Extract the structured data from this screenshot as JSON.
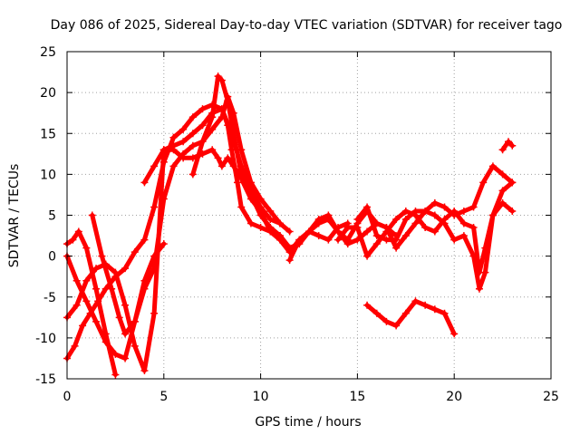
{
  "chart_data": {
    "type": "line",
    "title": "Day 086 of 2025, Sidereal Day-to-day VTEC variation (SDTVAR) for receiver tago",
    "xlabel": "GPS time / hours",
    "ylabel": "SDTVAR / TECUs",
    "xlim": [
      0,
      25
    ],
    "ylim": [
      -15,
      25
    ],
    "xticks": [
      0,
      5,
      10,
      15,
      20,
      25
    ],
    "yticks": [
      -15,
      -10,
      -5,
      0,
      5,
      10,
      15,
      20,
      25
    ],
    "grid": true,
    "marker": "plus",
    "color": "#ff0000",
    "series": [
      {
        "name": "track-1",
        "x": [
          0,
          0.5,
          1.0,
          1.5,
          2.0,
          2.5,
          3.0,
          3.5,
          4.0,
          4.5,
          5.0
        ],
        "y": [
          0,
          -3,
          -5.5,
          -8,
          -10.5,
          -12,
          -12.5,
          -8,
          -3,
          0,
          1.5
        ]
      },
      {
        "name": "track-2",
        "x": [
          0,
          0.4,
          0.8,
          1.2,
          1.6,
          2.0,
          2.5,
          3.0,
          3.5,
          4.0,
          4.5,
          5.0,
          5.5,
          6.0,
          6.5,
          7.0,
          7.5,
          8.0,
          8.3,
          8.5,
          8.8,
          9.0,
          9.5,
          10.0,
          10.5,
          11.0
        ],
        "y": [
          -12.5,
          -11,
          -8.5,
          -7,
          -5.5,
          -4,
          -2.5,
          -1.5,
          0.5,
          2,
          6,
          11.5,
          14.5,
          15.5,
          17,
          18,
          18.5,
          18,
          16,
          13,
          9,
          6,
          4,
          3.5,
          3,
          2.5
        ]
      },
      {
        "name": "track-3",
        "x": [
          0,
          0.5,
          1.0,
          1.5,
          2.0,
          2.5,
          3.0,
          3.5,
          4.0,
          4.5,
          5.0,
          5.5,
          6.0,
          6.5,
          7.0,
          7.5,
          8.0,
          8.5,
          9.0,
          9.5,
          10.0,
          10.5,
          11.0
        ],
        "y": [
          -7.5,
          -6,
          -3,
          -1.5,
          -1,
          -2,
          -6,
          -11,
          -14,
          -7,
          13,
          13.5,
          14,
          15,
          16,
          17.5,
          18,
          15,
          11,
          8,
          6,
          4.5,
          4
        ]
      },
      {
        "name": "track-4",
        "x": [
          0,
          0.3,
          0.6,
          1.0,
          1.5,
          2.0,
          2.5
        ],
        "y": [
          1.5,
          2,
          3,
          1,
          -4,
          -9.5,
          -14.5
        ]
      },
      {
        "name": "track-5",
        "x": [
          1.3,
          1.8,
          2.3,
          2.7,
          3.0,
          3.5,
          4.0,
          4.5,
          5.0,
          5.5,
          6.0,
          6.5,
          7.0,
          7.5,
          8.0,
          8.3,
          8.6,
          9.0,
          9.5,
          10.0,
          10.5,
          11.0,
          11.5
        ],
        "y": [
          5,
          0,
          -4,
          -7.5,
          -9.5,
          -8,
          -4,
          -1.5,
          7,
          11,
          12.5,
          13.5,
          14,
          15.5,
          17,
          19.5,
          17.5,
          13,
          9,
          7,
          5.5,
          4,
          3
        ]
      },
      {
        "name": "track-6",
        "x": [
          4.0,
          4.5,
          5.0,
          5.5,
          6.0,
          6.5,
          7.0,
          7.5,
          7.8,
          8.0,
          8.3,
          8.6,
          9.0,
          9.5,
          10.0,
          10.5,
          11.0,
          11.5,
          12.0,
          12.5,
          13.0,
          13.5,
          14.0,
          14.5
        ],
        "y": [
          9,
          11,
          13,
          13,
          12,
          12,
          12.5,
          13,
          12,
          11,
          12,
          11,
          9.5,
          7,
          5.5,
          3,
          2,
          0.5,
          2,
          3,
          2.5,
          2,
          3.5,
          4
        ]
      },
      {
        "name": "track-7",
        "x": [
          6.5,
          7.0,
          7.5,
          7.8,
          8.0,
          8.3,
          8.6,
          9.0,
          9.5,
          10.0,
          10.5,
          11.0,
          11.5,
          12.0,
          12.5,
          13.0,
          13.5,
          14.0,
          14.5,
          15.0,
          15.5,
          16.0,
          16.5,
          17.0
        ],
        "y": [
          10,
          14,
          17,
          22,
          21.5,
          19,
          15,
          10,
          7.5,
          5,
          3.5,
          2.5,
          1,
          1.5,
          3,
          4.5,
          5,
          3,
          2,
          4,
          5.5,
          4,
          3.5,
          2.5
        ]
      },
      {
        "name": "track-8",
        "x": [
          11.5,
          12.0,
          12.5,
          13.0,
          13.5,
          14.0,
          14.5,
          15.0,
          15.5,
          16.0,
          16.5,
          17.0,
          17.5,
          18.0,
          18.5,
          19.0,
          19.5,
          20.0,
          20.5,
          21.0,
          21.5,
          22.0,
          22.5,
          23.0
        ],
        "y": [
          -0.5,
          2,
          3,
          4,
          4.5,
          3,
          1.5,
          2,
          3,
          4,
          3.5,
          1,
          2.5,
          4,
          5.5,
          6.5,
          6,
          5,
          5.5,
          6,
          9,
          11,
          10,
          9
        ]
      },
      {
        "name": "track-9",
        "x": [
          14.0,
          14.5,
          15.0,
          15.5,
          16.0,
          16.5,
          17.0,
          17.5,
          18.0,
          18.5,
          19.0,
          19.5,
          20.0,
          20.5,
          21.0,
          21.3,
          21.6,
          22.0,
          22.5,
          23.0
        ],
        "y": [
          2,
          3.5,
          3.5,
          0,
          1.5,
          3,
          4.5,
          5.5,
          5,
          3.5,
          3,
          4.5,
          5.5,
          4,
          3.5,
          -2,
          1,
          5,
          8,
          9
        ]
      },
      {
        "name": "track-10",
        "x": [
          15.0,
          15.5,
          16.0,
          16.5,
          17.0,
          17.5,
          18.0,
          18.5,
          19.0,
          19.5,
          20.0,
          20.5,
          21.0,
          21.3,
          21.6,
          22.0,
          22.5,
          23.0
        ],
        "y": [
          4.5,
          6,
          2.5,
          2,
          2,
          4.5,
          5.5,
          5.5,
          5,
          4,
          2,
          2.5,
          0,
          -4,
          -2,
          5,
          6.5,
          5.5
        ]
      },
      {
        "name": "track-11",
        "x": [
          15.5,
          16.0,
          16.5,
          17.0,
          17.5,
          18.0,
          18.5,
          19.0,
          19.5,
          20.0
        ],
        "y": [
          -6,
          -7,
          -8,
          -8.5,
          -7,
          -5.5,
          -6,
          -6.5,
          -7,
          -9.5
        ]
      },
      {
        "name": "track-12",
        "x": [
          22.5,
          22.8,
          23.0
        ],
        "y": [
          13,
          14,
          13.5
        ]
      }
    ]
  }
}
